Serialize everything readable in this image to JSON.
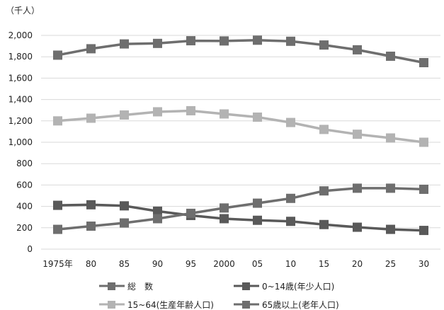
{
  "chart_data": {
    "type": "line",
    "unit_label": "（千人）",
    "categories": [
      "1975年",
      "80",
      "85",
      "90",
      "95",
      "2000",
      "05",
      "10",
      "15",
      "20",
      "25",
      "30"
    ],
    "ylim": [
      0,
      2000
    ],
    "yticks": [
      0,
      200,
      400,
      600,
      800,
      1000,
      1200,
      1400,
      1600,
      1800,
      2000
    ],
    "ytick_labels": [
      "0",
      "200",
      "400",
      "600",
      "800",
      "1,000",
      "1,200",
      "1,400",
      "1,600",
      "1,800",
      "2,000"
    ],
    "grid": true,
    "legend_position": "bottom",
    "series": [
      {
        "name": "総　数",
        "color": "#6e6e6e",
        "values": [
          1815,
          1875,
          1920,
          1925,
          1950,
          1948,
          1955,
          1945,
          1910,
          1865,
          1805,
          1745
        ]
      },
      {
        "name": "0~14歳(年少人口)",
        "color": "#595959",
        "values": [
          410,
          415,
          405,
          355,
          315,
          285,
          270,
          260,
          230,
          205,
          185,
          175
        ]
      },
      {
        "name": "15~64(生産年齢人口)",
        "color": "#b3b3b3",
        "values": [
          1200,
          1225,
          1255,
          1285,
          1295,
          1265,
          1235,
          1185,
          1120,
          1075,
          1040,
          1000
        ]
      },
      {
        "name": "65歳以上(老年人口)",
        "color": "#6e6e6e",
        "values": [
          185,
          215,
          245,
          285,
          335,
          385,
          430,
          475,
          545,
          570,
          570,
          560
        ]
      }
    ]
  }
}
